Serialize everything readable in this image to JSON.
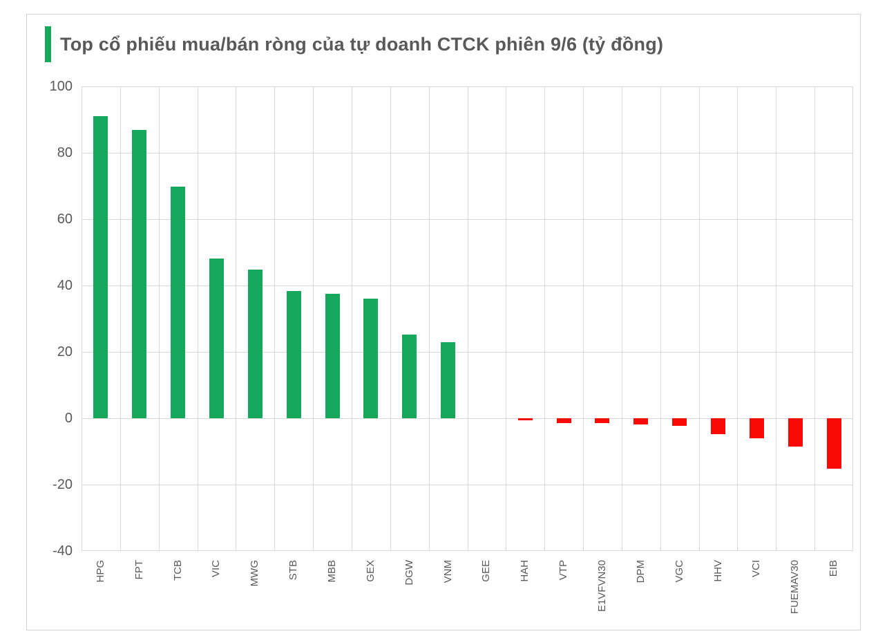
{
  "title": {
    "text": "Top cổ phiếu mua/bán ròng của tự doanh CTCK phiên 9/6 (tỷ đồng)",
    "accent_color": "#16a85a",
    "text_color": "#595959"
  },
  "card": {
    "border_color": "#d4d4d4",
    "background": "#ffffff"
  },
  "chart_data": {
    "type": "bar",
    "title": "Top cổ phiếu mua/bán ròng của tự doanh CTCK phiên 9/6 (tỷ đồng)",
    "unit": "tỷ đồng",
    "categories": [
      "HPG",
      "FPT",
      "TCB",
      "VIC",
      "MWG",
      "STB",
      "MBB",
      "GEX",
      "DGW",
      "VNM",
      "GEE",
      "HAH",
      "VTP",
      "E1VFVN30",
      "DPM",
      "VGC",
      "HHV",
      "VCI",
      "FUEMAV30",
      "EIB"
    ],
    "values": [
      91,
      86.8,
      69.7,
      48.2,
      44.7,
      38.3,
      37.4,
      36.1,
      25.3,
      22.9,
      0,
      -0.6,
      -1.4,
      -1.4,
      -1.8,
      -2.2,
      -4.8,
      -6.1,
      -8.5,
      -15.3
    ],
    "xlabel": "",
    "ylabel": "",
    "ylim": [
      -40,
      100
    ],
    "yticks": [
      100,
      80,
      60,
      40,
      20,
      0,
      -20,
      -40
    ],
    "grid": true,
    "legend_position": "none",
    "positive_color": "#16a85a",
    "negative_color": "#fa0a05",
    "gridline_color": "#d9d9d9",
    "axis_text_color": "#595959"
  }
}
